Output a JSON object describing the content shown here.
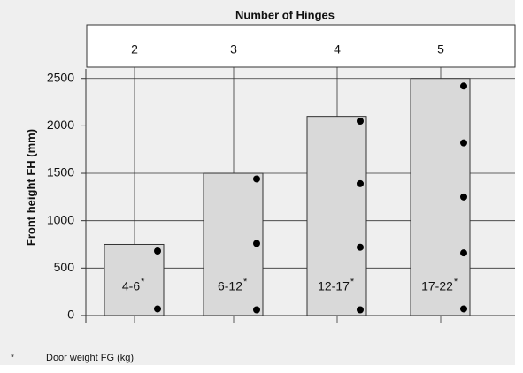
{
  "chart_data": {
    "type": "bar",
    "title": "Number of Hinges",
    "categories": [
      "2",
      "3",
      "4",
      "5"
    ],
    "values": [
      750,
      1500,
      2100,
      2500
    ],
    "color": "#d9d9d9",
    "weight_labels": [
      "4-6",
      "6-12",
      "12-17",
      "17-22"
    ],
    "weight_marker": "*",
    "hinges": [
      [
        70,
        680
      ],
      [
        60,
        760,
        1440
      ],
      [
        60,
        720,
        1390,
        2050
      ],
      [
        70,
        660,
        1250,
        1820,
        2420
      ]
    ],
    "ylabel": "Front height FH (mm)",
    "ylim": [
      -75,
      2600
    ],
    "yticks": [
      0,
      500,
      1000,
      1500,
      2000,
      2500
    ],
    "grid": true,
    "footnote": {
      "marker": "*",
      "text": "Door weight FG (kg)"
    }
  }
}
